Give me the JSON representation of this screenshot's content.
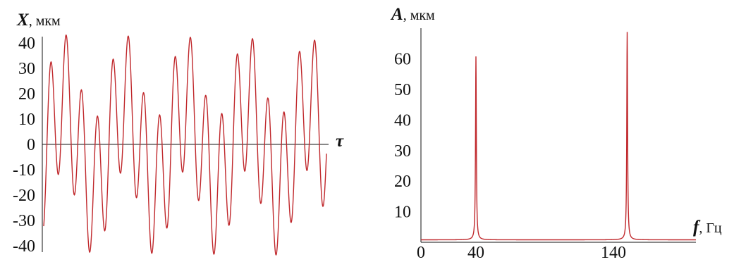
{
  "chart_data": [
    {
      "type": "line",
      "ylabel": {
        "symbol": "X",
        "unit": ", мкм"
      },
      "xlabel": {
        "symbol": "τ"
      },
      "ylim": [
        -45,
        45
      ],
      "yticks": [
        40,
        30,
        20,
        10,
        0,
        -10,
        -20,
        -30,
        -40
      ],
      "ytick_labels": [
        "40",
        "30",
        "20",
        "10",
        "0",
        "-10",
        "-20",
        "-30",
        "-40"
      ],
      "grid": false,
      "series": [
        {
          "color": "#c0282c",
          "description": "sum of two sinusoids",
          "components": [
            {
              "amplitude": 27,
              "cycles": 18.2,
              "phase": -1.25
            },
            {
              "amplitude": 17,
              "cycles": 4.6,
              "phase": -0.4
            }
          ]
        }
      ]
    },
    {
      "type": "line",
      "ylabel": {
        "symbol": "A",
        "unit": ", мкм"
      },
      "xlabel": {
        "symbol": "f",
        "unit": ", Гц"
      },
      "xlim": [
        0,
        200
      ],
      "ylim": [
        0,
        70
      ],
      "xticks": [
        0,
        40,
        140
      ],
      "xtick_labels": [
        "0",
        "40",
        "140"
      ],
      "yticks": [
        60,
        50,
        40,
        30,
        20,
        10
      ],
      "ytick_labels": [
        "60",
        "50",
        "40",
        "30",
        "20",
        "10"
      ],
      "grid": false,
      "series": [
        {
          "color": "#c0282c",
          "peaks": [
            {
              "x": 40,
              "y": 60
            },
            {
              "x": 150,
              "y": 68
            }
          ],
          "baseline": 0.8
        }
      ]
    }
  ]
}
